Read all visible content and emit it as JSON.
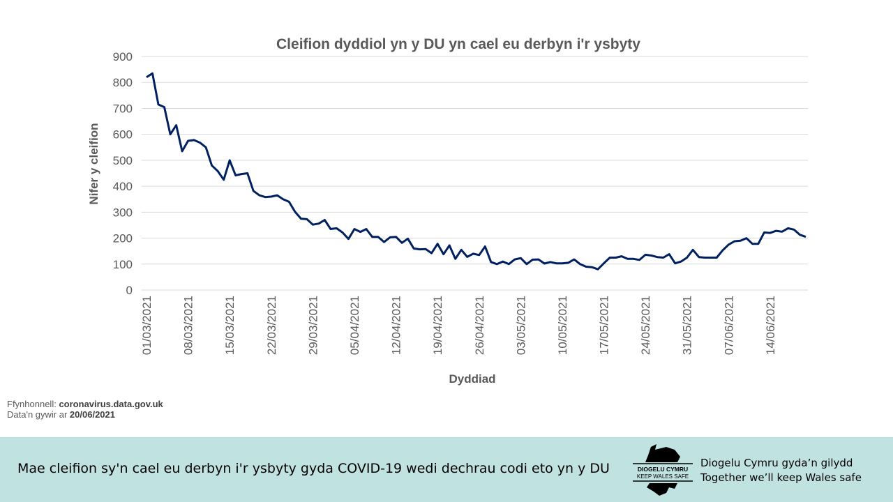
{
  "chart_data": {
    "type": "line",
    "title": "Cleifion dyddiol yn y DU yn cael eu derbyn i'r ysbyty",
    "xlabel": "Dyddiad",
    "ylabel": "Nifer y cleifion",
    "ylim": [
      0,
      900
    ],
    "yticks": [
      0,
      100,
      200,
      300,
      400,
      500,
      600,
      700,
      800,
      900
    ],
    "xtick_labels": [
      "01/03/2021",
      "08/03/2021",
      "15/03/2021",
      "22/03/2021",
      "29/03/2021",
      "05/04/2021",
      "12/04/2021",
      "19/04/2021",
      "26/04/2021",
      "03/05/2021",
      "10/05/2021",
      "17/05/2021",
      "24/05/2021",
      "31/05/2021",
      "07/06/2021",
      "14/06/2021"
    ],
    "grid": true,
    "line_color": "#002060",
    "x_start": "01/03/2021",
    "x_end": "20/06/2021",
    "values": [
      820,
      835,
      715,
      705,
      600,
      635,
      535,
      575,
      578,
      568,
      550,
      480,
      458,
      425,
      500,
      442,
      447,
      450,
      382,
      365,
      358,
      360,
      365,
      350,
      340,
      302,
      275,
      273,
      252,
      256,
      270,
      235,
      238,
      222,
      197,
      235,
      224,
      235,
      205,
      205,
      185,
      203,
      205,
      182,
      198,
      160,
      157,
      158,
      142,
      178,
      138,
      172,
      120,
      155,
      128,
      140,
      135,
      168,
      108,
      100,
      110,
      100,
      118,
      123,
      100,
      117,
      118,
      102,
      108,
      103,
      103,
      105,
      118,
      100,
      90,
      88,
      80,
      103,
      125,
      125,
      130,
      120,
      120,
      116,
      136,
      133,
      127,
      125,
      138,
      103,
      110,
      125,
      155,
      127,
      125,
      125,
      125,
      153,
      175,
      188,
      190,
      200,
      178,
      178,
      222,
      220,
      228,
      225,
      238,
      233,
      213,
      205
    ]
  },
  "source": {
    "label": "Ffynhonnell:",
    "value": "coronavirus.data.gov.uk",
    "date_label": "Data'n gywir ar",
    "date": "20/06/2021"
  },
  "footer": {
    "caption": "Mae cleifion sy'n cael eu derbyn i'r ysbyty gyda COVID-19 wedi dechrau codi eto yn y DU",
    "logo_line1": "DIOGELU CYMRU",
    "logo_line2": "KEEP WALES SAFE",
    "tagline_cy": "Diogelu Cymru gyda’n gilydd",
    "tagline_en": "Together we’ll keep Wales safe"
  }
}
